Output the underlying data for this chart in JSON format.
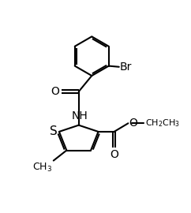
{
  "background_color": "#ffffff",
  "line_color": "#000000",
  "bond_width": 1.5,
  "font_size": 10,
  "figsize": [
    2.42,
    2.7
  ],
  "dpi": 100,
  "xlim": [
    0,
    10
  ],
  "ylim": [
    0,
    11
  ]
}
